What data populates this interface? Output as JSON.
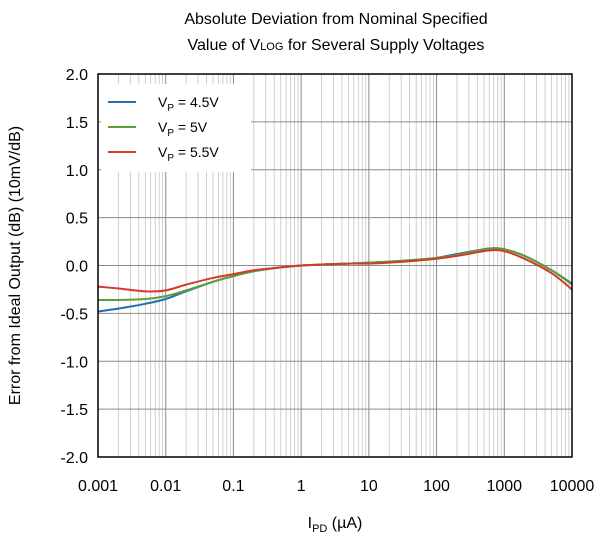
{
  "chart_data": {
    "type": "line",
    "title": {
      "line1": "Absolute Deviation from Nominal Specified",
      "line2_prefix": "Value of V",
      "line2_sub": "LOG",
      "line2_suffix": " for Several Supply Voltages"
    },
    "xlabel": {
      "main": "I",
      "sub": "PD",
      "suffix": " (µA)"
    },
    "ylabel": "Error from Ideal Output (dB) (10mV/dB)",
    "x_scale": "log",
    "xlim": [
      0.001,
      10000
    ],
    "ylim": [
      -2.0,
      2.0
    ],
    "x_ticks": [
      {
        "value": 0.001,
        "label": "0.001"
      },
      {
        "value": 0.01,
        "label": "0.01"
      },
      {
        "value": 0.1,
        "label": "0.1"
      },
      {
        "value": 1,
        "label": "1"
      },
      {
        "value": 10,
        "label": "10"
      },
      {
        "value": 100,
        "label": "100"
      },
      {
        "value": 1000,
        "label": "1000"
      },
      {
        "value": 10000,
        "label": "10000"
      }
    ],
    "y_ticks": [
      {
        "value": 2.0,
        "label": "2.0"
      },
      {
        "value": 1.5,
        "label": "1.5"
      },
      {
        "value": 1.0,
        "label": "1.0"
      },
      {
        "value": 0.5,
        "label": "0.5"
      },
      {
        "value": 0.0,
        "label": "0.0"
      },
      {
        "value": -0.5,
        "label": "-0.5"
      },
      {
        "value": -1.0,
        "label": "-1.0"
      },
      {
        "value": -1.5,
        "label": "-1.5"
      },
      {
        "value": -2.0,
        "label": "-2.0"
      }
    ],
    "grid": true,
    "legend_position": "top-left",
    "series": [
      {
        "name": {
          "main": "V",
          "sub": "P",
          "suffix": " = 4.5V"
        },
        "color": "#1f6fb2",
        "x": [
          0.001,
          0.002,
          0.005,
          0.01,
          0.02,
          0.05,
          0.1,
          0.2,
          0.5,
          1,
          2,
          5,
          10,
          20,
          50,
          100,
          200,
          500,
          700,
          1000,
          2000,
          5000,
          10000
        ],
        "y": [
          -0.48,
          -0.45,
          -0.4,
          -0.35,
          -0.27,
          -0.17,
          -0.11,
          -0.06,
          -0.02,
          0.0,
          0.01,
          0.02,
          0.03,
          0.04,
          0.06,
          0.08,
          0.12,
          0.17,
          0.18,
          0.17,
          0.1,
          -0.05,
          -0.19
        ]
      },
      {
        "name": {
          "main": "V",
          "sub": "P",
          "suffix": " = 5V"
        },
        "color": "#5e9e37",
        "x": [
          0.001,
          0.002,
          0.005,
          0.01,
          0.02,
          0.05,
          0.1,
          0.2,
          0.5,
          1,
          2,
          5,
          10,
          20,
          50,
          100,
          200,
          500,
          700,
          1000,
          2000,
          5000,
          10000
        ],
        "y": [
          -0.36,
          -0.36,
          -0.35,
          -0.32,
          -0.26,
          -0.17,
          -0.11,
          -0.06,
          -0.02,
          0.0,
          0.01,
          0.02,
          0.03,
          0.04,
          0.06,
          0.08,
          0.11,
          0.17,
          0.18,
          0.17,
          0.1,
          -0.05,
          -0.2
        ]
      },
      {
        "name": {
          "main": "V",
          "sub": "P",
          "suffix": " = 5.5V"
        },
        "color": "#d33a2c",
        "x": [
          0.001,
          0.002,
          0.005,
          0.01,
          0.02,
          0.05,
          0.1,
          0.2,
          0.5,
          1,
          2,
          5,
          10,
          20,
          50,
          100,
          200,
          500,
          700,
          1000,
          2000,
          5000,
          10000
        ],
        "y": [
          -0.22,
          -0.24,
          -0.27,
          -0.26,
          -0.2,
          -0.13,
          -0.09,
          -0.05,
          -0.02,
          0.0,
          0.01,
          0.02,
          0.02,
          0.03,
          0.05,
          0.07,
          0.1,
          0.15,
          0.16,
          0.15,
          0.07,
          -0.08,
          -0.25
        ]
      }
    ]
  }
}
